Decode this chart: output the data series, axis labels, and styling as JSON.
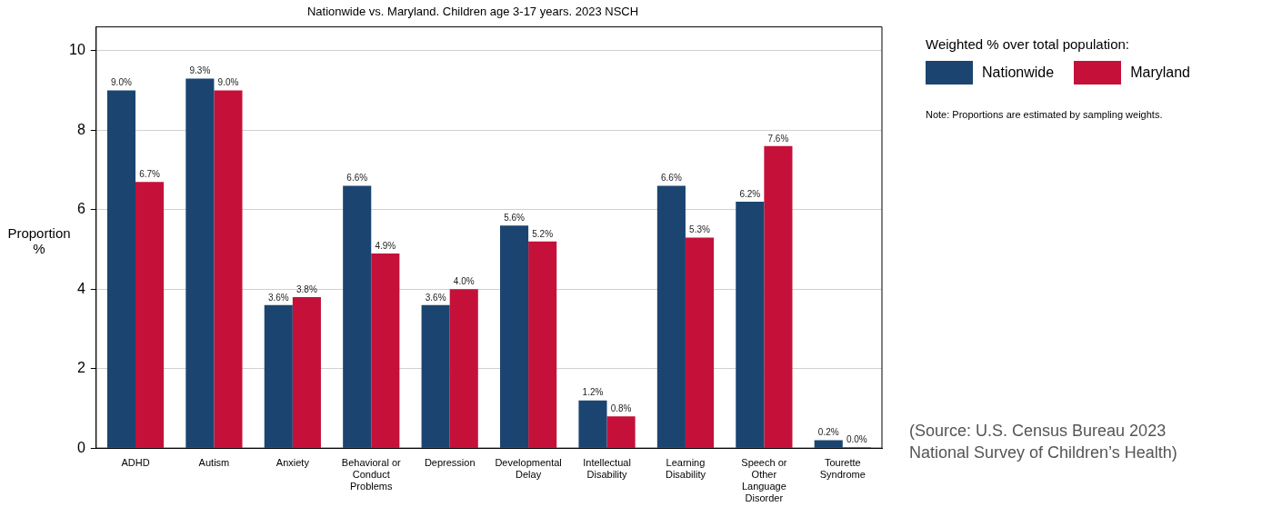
{
  "chart_data": {
    "type": "bar",
    "title": "Nationwide vs. Maryland. Children age 3-17 years. 2023 NSCH",
    "ylabel": "Proportion %",
    "legend_title": "Weighted % over total population:",
    "categories": [
      "ADHD",
      "Autism",
      "Anxiety",
      "Behavioral or Conduct Problems",
      "Depression",
      "Developmental Delay",
      "Intellectual Disability",
      "Learning Disability",
      "Speech or Other Language Disorder",
      "Tourette Syndrome"
    ],
    "series": [
      {
        "name": "Nationwide",
        "color": "#1b4570",
        "values": [
          9.0,
          9.3,
          3.6,
          6.6,
          3.6,
          5.6,
          1.2,
          6.6,
          6.2,
          0.2
        ],
        "value_labels": [
          "9.0%",
          "9.3%",
          "3.6%",
          "6.6%",
          "3.6%",
          "5.6%",
          "1.2%",
          "6.6%",
          "6.2%",
          "0.2%"
        ]
      },
      {
        "name": "Maryland",
        "color": "#c5113a",
        "values": [
          6.7,
          9.0,
          3.8,
          4.9,
          4.0,
          5.2,
          0.8,
          5.3,
          7.6,
          0.0
        ],
        "value_labels": [
          "6.7%",
          "9.0%",
          "3.8%",
          "4.9%",
          "4.0%",
          "5.2%",
          "0.8%",
          "5.3%",
          "7.6%",
          "0.0%"
        ]
      }
    ],
    "ylim": [
      0,
      10.6
    ],
    "yticks": [
      0,
      2,
      4,
      6,
      8,
      10
    ],
    "grid": "y",
    "legend": "top right",
    "annotations": [
      "Note: Proportions are estimated by sampling weights.",
      "(Source: U.S. Census Bureau 2023 National Survey of Children’s Health)"
    ]
  }
}
